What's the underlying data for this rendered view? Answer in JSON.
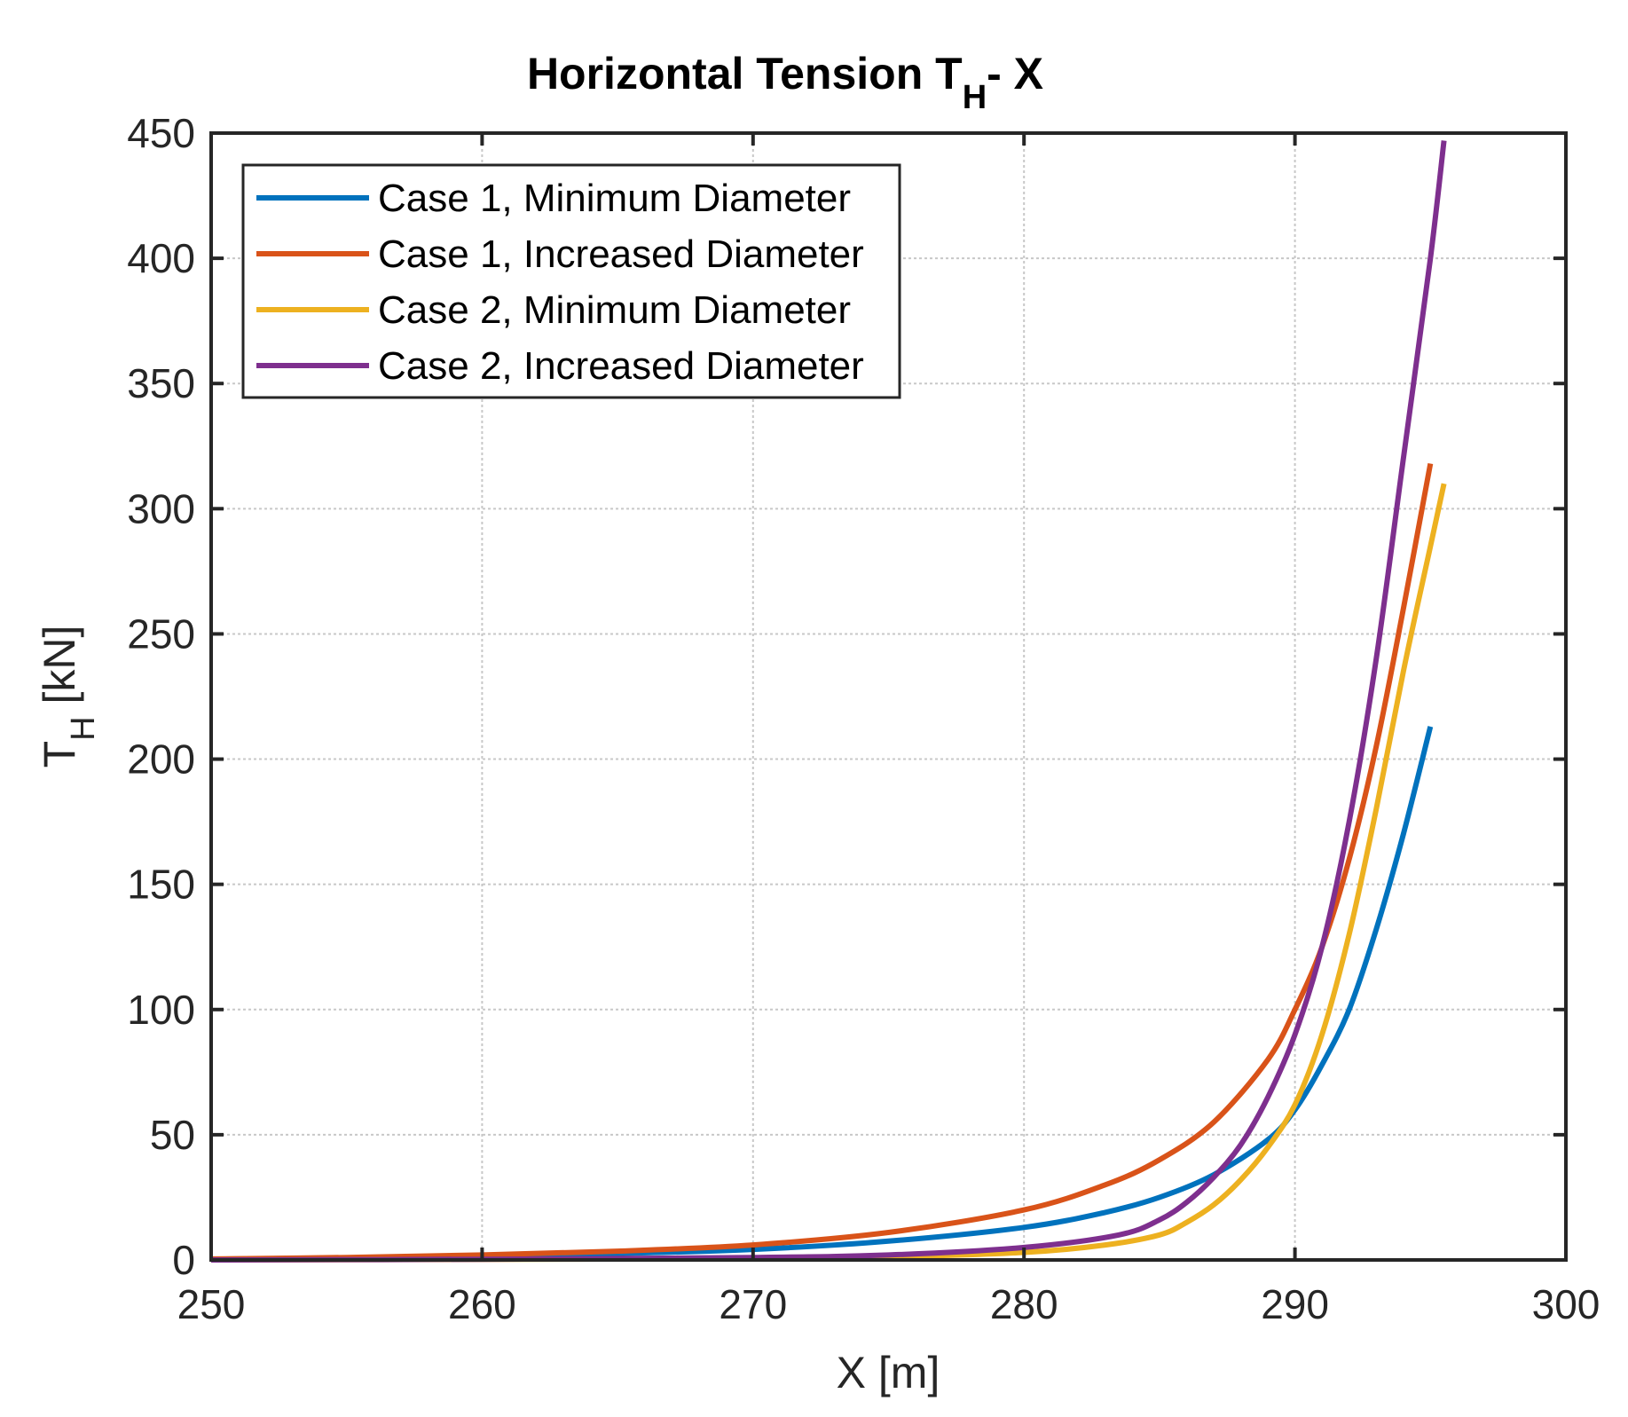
{
  "chart_data": {
    "type": "line",
    "title": "Horizontal Tension T",
    "title_subscript": "H",
    "title_suffix": "- X",
    "xlabel": "X [m]",
    "ylabel": "T",
    "ylabel_subscript": "H",
    "ylabel_suffix": " [kN]",
    "xlim": [
      250,
      300
    ],
    "ylim": [
      0,
      450
    ],
    "xticks": [
      250,
      260,
      270,
      280,
      290,
      300
    ],
    "yticks": [
      0,
      50,
      100,
      150,
      200,
      250,
      300,
      350,
      400,
      450
    ],
    "grid": true,
    "legend_position": "top-left",
    "series": [
      {
        "name": "Case 1, Minimum Diameter",
        "color": "#0072BD",
        "x": [
          250,
          255,
          260,
          265,
          270,
          275,
          280,
          283,
          285,
          287,
          289,
          290,
          291,
          292,
          293,
          294,
          295
        ],
        "y": [
          0.3,
          0.8,
          1.5,
          2.6,
          4.2,
          7.5,
          13,
          19,
          25,
          34,
          48,
          60,
          78,
          100,
          132,
          170,
          213
        ]
      },
      {
        "name": "Case 1, Increased Diameter",
        "color": "#D95319",
        "x": [
          250,
          255,
          260,
          265,
          270,
          275,
          280,
          283,
          285,
          287,
          289,
          290,
          291,
          292,
          293,
          294,
          295
        ],
        "y": [
          0.4,
          1,
          2,
          3.5,
          6,
          11,
          20,
          30,
          40,
          55,
          80,
          100,
          125,
          160,
          205,
          260,
          318
        ]
      },
      {
        "name": "Case 2, Minimum Diameter",
        "color": "#EDB120",
        "x": [
          250,
          260,
          270,
          275,
          280,
          283,
          285,
          286,
          287,
          288,
          289,
          290,
          291,
          292,
          293,
          294,
          295,
          295.5
        ],
        "y": [
          0,
          0.2,
          0.6,
          1.2,
          3,
          6,
          10,
          15,
          22,
          32,
          45,
          62,
          90,
          130,
          180,
          235,
          285,
          310
        ]
      },
      {
        "name": "Case 2, Increased Diameter",
        "color": "#7E2F8E",
        "x": [
          250,
          260,
          270,
          275,
          280,
          283.5,
          285,
          286,
          287,
          288,
          289,
          290,
          291,
          292,
          293,
          294,
          295,
          295.5
        ],
        "y": [
          0,
          0.3,
          1,
          2,
          5,
          10,
          16,
          23,
          33,
          46,
          65,
          90,
          125,
          175,
          240,
          320,
          400,
          447
        ]
      }
    ]
  }
}
